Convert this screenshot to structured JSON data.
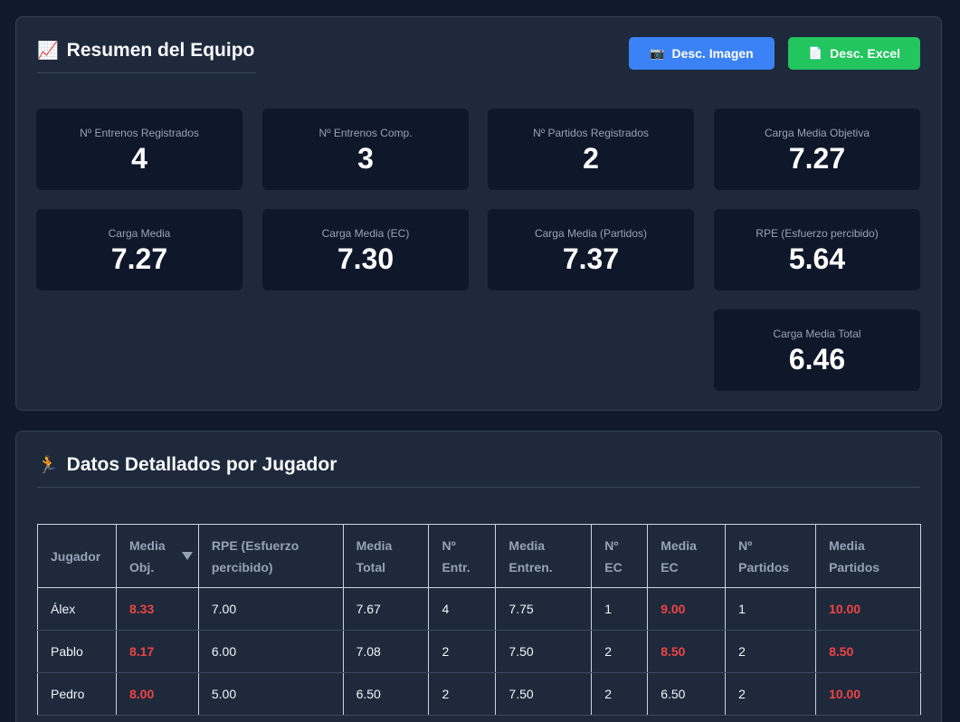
{
  "summary": {
    "title": "Resumen del Equipo",
    "title_icon": "📈",
    "btn_image": "Desc. Imagen",
    "btn_image_icon": "📷",
    "btn_excel": "Desc. Excel",
    "btn_excel_icon": "📄",
    "stats": [
      {
        "label": "Nº Entrenos Registrados",
        "value": "4"
      },
      {
        "label": "Nº Entrenos Comp.",
        "value": "3"
      },
      {
        "label": "Nº Partidos Registrados",
        "value": "2"
      },
      {
        "label": "Carga Media Objetiva",
        "value": "7.27"
      },
      {
        "label": "Carga Media",
        "value": "7.27"
      },
      {
        "label": "Carga Media (EC)",
        "value": "7.30"
      },
      {
        "label": "Carga Media (Partidos)",
        "value": "7.37"
      },
      {
        "label": "RPE (Esfuerzo percibido)",
        "value": "5.64"
      },
      {
        "label": "Carga Media Total",
        "value": "6.46"
      }
    ]
  },
  "players": {
    "title": "Datos Detallados por Jugador",
    "title_icon": "🏃",
    "columns": [
      [
        "Jugador"
      ],
      [
        "Media",
        "Obj."
      ],
      [
        "RPE (Esfuerzo",
        "percibido)"
      ],
      [
        "Media",
        "Total"
      ],
      [
        "Nº",
        "Entr."
      ],
      [
        "Media",
        "Entren."
      ],
      [
        "Nº",
        "EC"
      ],
      [
        "Media",
        "EC"
      ],
      [
        "Nº",
        "Partidos"
      ],
      [
        "Media",
        "Partidos"
      ]
    ],
    "rows": [
      [
        "Álex",
        "8.33",
        "7.00",
        "7.67",
        "4",
        "7.75",
        "1",
        "9.00",
        "1",
        "10.00"
      ],
      [
        "Pablo",
        "8.17",
        "6.00",
        "7.08",
        "2",
        "7.50",
        "2",
        "8.50",
        "2",
        "8.50"
      ],
      [
        "Pedro",
        "8.00",
        "5.00",
        "6.50",
        "2",
        "7.50",
        "2",
        "6.50",
        "2",
        "10.00"
      ]
    ],
    "highlight": [
      [
        false,
        true,
        false,
        false,
        false,
        false,
        false,
        true,
        false,
        true
      ],
      [
        false,
        true,
        false,
        false,
        false,
        false,
        false,
        true,
        false,
        true
      ],
      [
        false,
        true,
        false,
        false,
        false,
        false,
        false,
        false,
        false,
        true
      ]
    ],
    "highlight_color": "#ef4444"
  }
}
